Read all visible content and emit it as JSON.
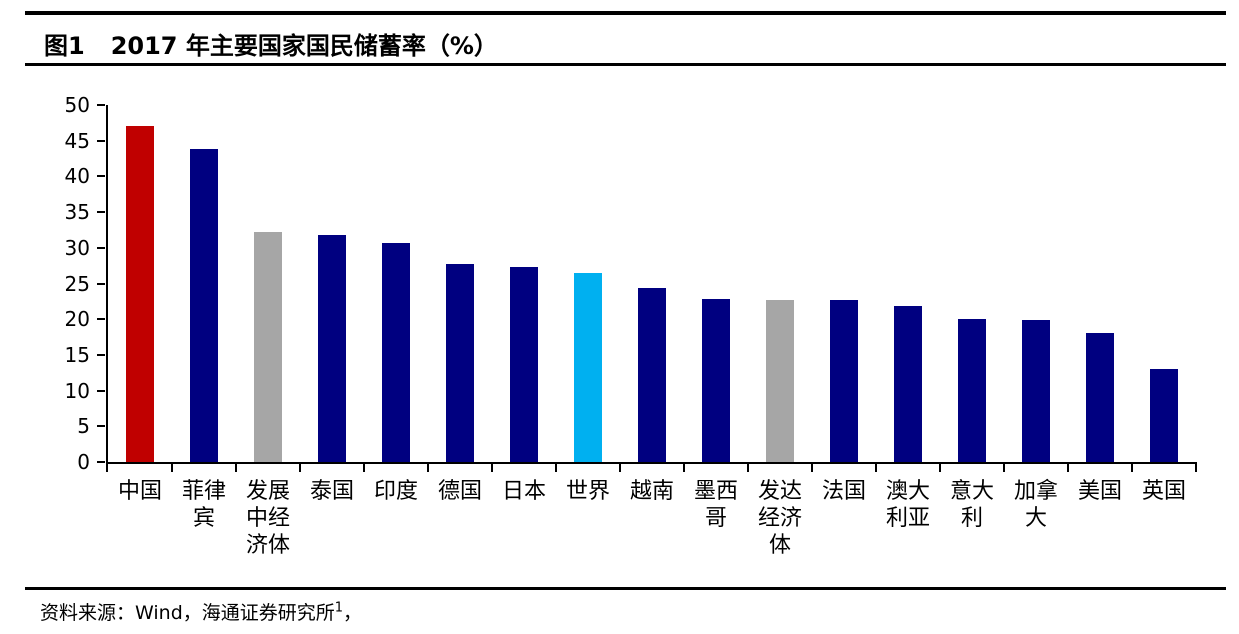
{
  "figure": {
    "figure_label": "图1",
    "title": "2017 年主要国家国民储蓄率（%）",
    "source_prefix": "资料来源：Wind，海通证券研究所",
    "source_superscript": "1",
    "source_suffix": "，"
  },
  "chart_data": {
    "type": "bar",
    "title": "2017 年主要国家国民储蓄率（%）",
    "xlabel": "",
    "ylabel": "",
    "ylim": [
      0,
      50
    ],
    "yticks": [
      0,
      5,
      10,
      15,
      20,
      25,
      30,
      35,
      40,
      45,
      50
    ],
    "grid": false,
    "legend": false,
    "categories": [
      "中国",
      "菲律宾",
      "发展中经济体",
      "泰国",
      "印度",
      "德国",
      "日本",
      "世界",
      "越南",
      "墨西哥",
      "发达经济体",
      "法国",
      "澳大利亚",
      "意大利",
      "加拿大",
      "美国",
      "英国"
    ],
    "values": [
      47.0,
      43.8,
      32.2,
      31.8,
      30.7,
      27.8,
      27.3,
      26.5,
      24.4,
      22.9,
      22.7,
      22.7,
      21.9,
      20.0,
      19.9,
      18.1,
      13.0
    ],
    "bar_colors": [
      "#C00000",
      "#000080",
      "#A6A6A6",
      "#000080",
      "#000080",
      "#000080",
      "#000080",
      "#00B0F0",
      "#000080",
      "#000080",
      "#A6A6A6",
      "#000080",
      "#000080",
      "#000080",
      "#000080",
      "#000080",
      "#000080"
    ],
    "palette": {
      "highlight_china": "#C00000",
      "country_default": "#000080",
      "aggregate_gray": "#A6A6A6",
      "world_blue": "#00B0F0",
      "axis_black": "#000000"
    }
  }
}
